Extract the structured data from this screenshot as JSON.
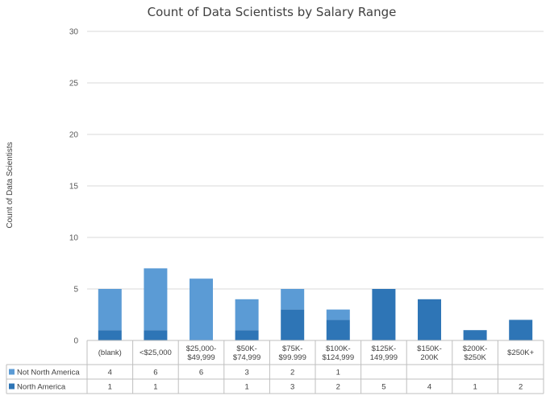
{
  "chart_data": {
    "type": "bar",
    "stacked": true,
    "title": "Count of Data Scientists by Salary Range",
    "xlabel": "",
    "ylabel": "Count of Data Scientists",
    "ylim": [
      0,
      30
    ],
    "yticks": [
      0,
      5,
      10,
      15,
      20,
      25,
      30
    ],
    "grid": true,
    "legend": "data-table",
    "categories": [
      [
        "(blank)"
      ],
      [
        "<$25,000"
      ],
      [
        "$25,000-",
        "$49,999"
      ],
      [
        "$50K-",
        "$74,999"
      ],
      [
        "$75K-",
        "$99.999"
      ],
      [
        "$100K-",
        "$124,999"
      ],
      [
        "$125K-",
        "149,999"
      ],
      [
        "$150K-",
        "200K"
      ],
      [
        "$200K-",
        "$250K"
      ],
      [
        "$250K+"
      ]
    ],
    "series": [
      {
        "name": "Not North America",
        "color": "#5b9bd5",
        "values": [
          4,
          6,
          6,
          3,
          2,
          1,
          null,
          null,
          null,
          null
        ]
      },
      {
        "name": "North America",
        "color": "#2e75b6",
        "values": [
          1,
          1,
          null,
          1,
          3,
          2,
          5,
          4,
          1,
          2
        ]
      }
    ]
  }
}
